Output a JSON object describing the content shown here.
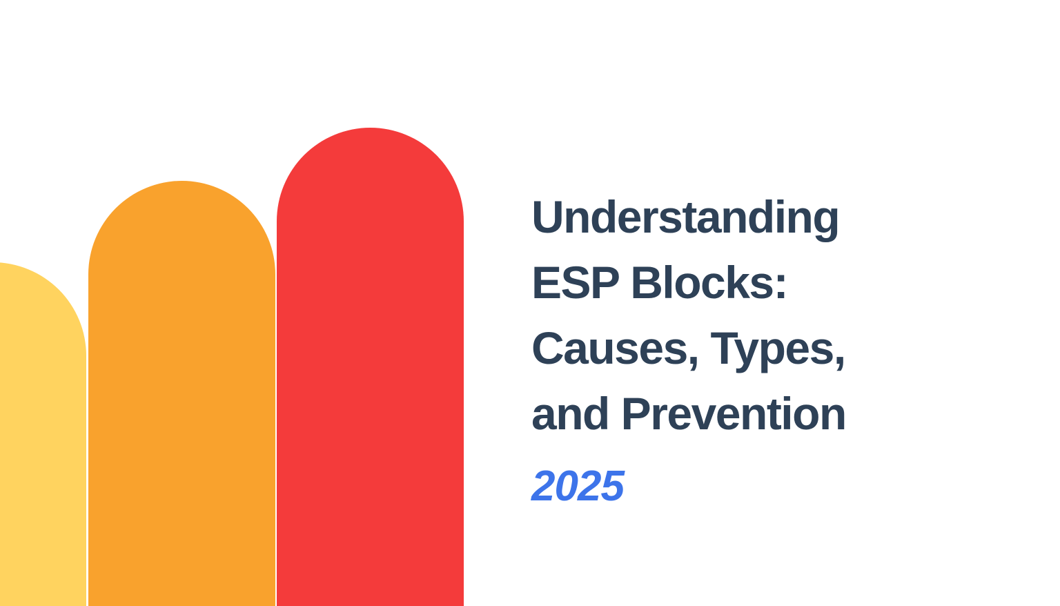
{
  "hero": {
    "title_lines": [
      "Understanding",
      "ESP Blocks:",
      "Causes, Types,",
      "and Prevention"
    ],
    "title_color": "#2e4157",
    "year": "2025",
    "year_color": "#3d74ea"
  },
  "decoration": {
    "type": "rounded-bar-motif",
    "bars": [
      {
        "name": "yellow-bar",
        "color": "#ffd35f"
      },
      {
        "name": "orange-bar",
        "color": "#f9a22d"
      },
      {
        "name": "red-bar",
        "color": "#f43b3b"
      }
    ]
  },
  "page": {
    "background": "#ffffff"
  }
}
